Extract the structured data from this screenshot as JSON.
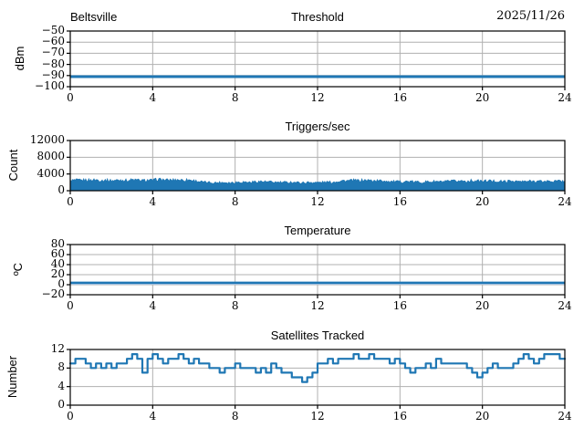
{
  "colors": {
    "line": "#1f77b4",
    "line_light": "#9dc3e6",
    "grid": "#b0b0b0",
    "axis": "#000000",
    "background": "#ffffff",
    "text": "#000000"
  },
  "chart_data": [
    {
      "id": "threshold",
      "type": "line",
      "title_left": "Beltsville",
      "title": "Threshold",
      "title_right": "2025/11/26",
      "ylabel": "dBm",
      "xlim": [
        0,
        24
      ],
      "xticks": [
        0,
        4,
        8,
        12,
        16,
        20,
        24
      ],
      "ylim": [
        -100,
        -50
      ],
      "yticks": [
        -50,
        -60,
        -70,
        -80,
        -90,
        -100
      ],
      "grid": true,
      "series": [
        {
          "name": "threshold_dbm",
          "style": "flat",
          "value": -91,
          "linewidth": 3
        }
      ]
    },
    {
      "id": "triggers",
      "type": "area",
      "title": "Triggers/sec",
      "ylabel": "Count",
      "xlim": [
        0,
        24
      ],
      "xticks": [
        0,
        4,
        8,
        12,
        16,
        20,
        24
      ],
      "ylim": [
        0,
        12000
      ],
      "yticks": [
        0,
        4000,
        8000,
        12000
      ],
      "grid": true,
      "x_step_hours": 0.25,
      "values": [
        2400,
        2500,
        2450,
        2550,
        2500,
        2600,
        2450,
        2500,
        2400,
        2500,
        2550,
        2450,
        2600,
        2500,
        2400,
        2500,
        2450,
        2700,
        2600,
        2500,
        2550,
        2650,
        2500,
        2600,
        2400,
        2200,
        2000,
        1950,
        1900,
        1950,
        2000,
        1900,
        2000,
        2100,
        2050,
        2000,
        2150,
        2200,
        2100,
        2050,
        2000,
        1950,
        2000,
        2050,
        1950,
        1900,
        1950,
        2000,
        1950,
        2000,
        2050,
        2000,
        2300,
        2400,
        2350,
        2450,
        2400,
        2500,
        2450,
        2400,
        2350,
        2400,
        2200,
        2150,
        2100,
        2200,
        2150,
        2100,
        2050,
        2100,
        2150,
        2200,
        2100,
        2150,
        2250,
        2300,
        2350,
        2250,
        2400,
        2300,
        2250,
        2350,
        2300,
        2250,
        2200,
        2250,
        2300,
        2200,
        2150,
        2250,
        2300,
        2250,
        2200,
        2300,
        2250,
        2300,
        2250
      ]
    },
    {
      "id": "temperature",
      "type": "line",
      "title": "Temperature",
      "ylabel": "ºC",
      "xlim": [
        0,
        24
      ],
      "xticks": [
        0,
        4,
        8,
        12,
        16,
        20,
        24
      ],
      "ylim": [
        -20,
        80
      ],
      "yticks": [
        80,
        60,
        40,
        20,
        0,
        -20
      ],
      "grid": true,
      "series": [
        {
          "name": "temperature_light",
          "style": "flat",
          "value": 2,
          "linewidth": 2,
          "light": true
        },
        {
          "name": "temperature_c",
          "style": "flat",
          "value": 4,
          "linewidth": 2.4
        }
      ]
    },
    {
      "id": "satellites",
      "type": "step",
      "title": "Satellites Tracked",
      "ylabel": "Number",
      "xlim": [
        0,
        24
      ],
      "xticks": [
        0,
        4,
        8,
        12,
        16,
        20,
        24
      ],
      "ylim": [
        0,
        12
      ],
      "yticks": [
        0,
        4,
        8,
        12
      ],
      "grid": true,
      "x_step_hours": 0.25,
      "values": [
        9,
        10,
        10,
        9,
        8,
        9,
        8,
        9,
        8,
        9,
        9,
        10,
        11,
        10,
        7,
        10,
        11,
        10,
        9,
        10,
        10,
        11,
        10,
        9,
        10,
        9,
        9,
        8,
        8,
        7,
        8,
        8,
        9,
        8,
        8,
        8,
        7,
        8,
        7,
        9,
        8,
        7,
        7,
        6,
        6,
        5,
        6,
        7,
        9,
        9,
        10,
        9,
        10,
        10,
        10,
        11,
        10,
        10,
        11,
        10,
        10,
        10,
        9,
        10,
        9,
        8,
        7,
        8,
        8,
        9,
        8,
        10,
        9,
        9,
        9,
        9,
        9,
        8,
        7,
        6,
        7,
        8,
        9,
        8,
        8,
        8,
        9,
        10,
        11,
        10,
        9,
        10,
        11,
        11,
        11,
        10,
        10
      ]
    }
  ]
}
